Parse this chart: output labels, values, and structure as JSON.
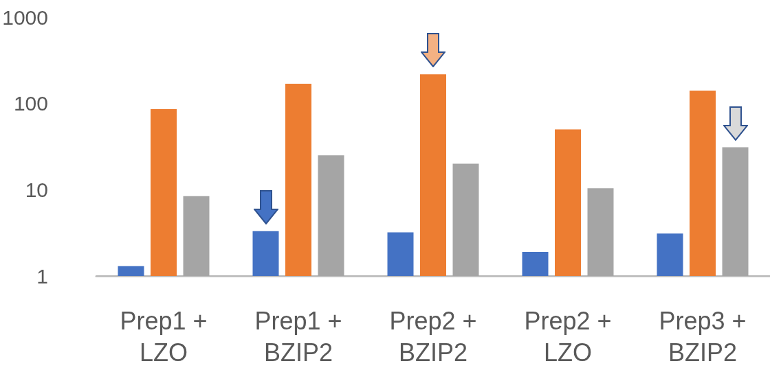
{
  "chart_data": {
    "type": "bar",
    "categories": [
      "Prep1 +\nLZO",
      "Prep1 +\nBZIP2",
      "Prep2 +\nBZIP2",
      "Prep2 +\nLZO",
      "Prep3 +\nBZIP2"
    ],
    "series": [
      {
        "color": "#4472c4",
        "values": [
          1.3,
          3.3,
          3.2,
          1.9,
          3.1
        ]
      },
      {
        "color": "#ed7d31",
        "values": [
          86,
          169,
          218,
          50,
          141
        ]
      },
      {
        "color": "#a5a5a5",
        "values": [
          8.4,
          25,
          20,
          10.4,
          31
        ]
      }
    ],
    "log": true,
    "ylim": [
      1,
      1000
    ],
    "yticks": [
      1,
      10,
      100,
      {
        "value": 1000,
        "label": "1000"
      }
    ],
    "grid": false
  }
}
